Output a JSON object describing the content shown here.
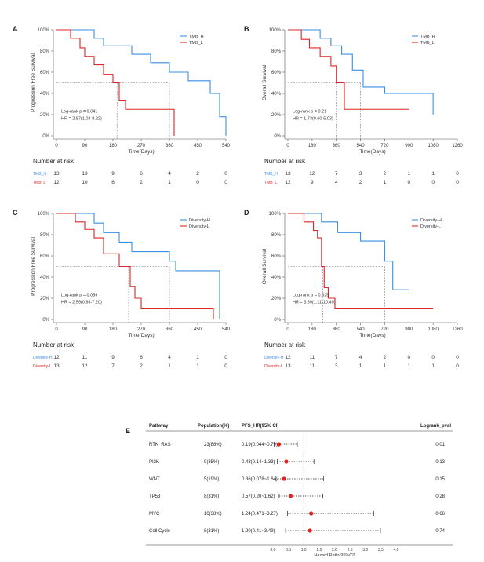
{
  "colors": {
    "high": "#3a8ee6",
    "low": "#e02424",
    "axis": "#555555",
    "ref": "#777777"
  },
  "chart_data": [
    {
      "type": "line",
      "panel": "A",
      "title": "",
      "xlabel": "Time(Days)",
      "ylabel": "Progression Free Survival",
      "xticks": [
        "0",
        "90",
        "180",
        "270",
        "360",
        "450",
        "540"
      ],
      "xlim": [
        0,
        540
      ],
      "yticks": [
        "0%",
        "20%",
        "40%",
        "60%",
        "80%",
        "100%"
      ],
      "ylim": [
        0,
        100
      ],
      "legend": {
        "high": "TMB_H",
        "low": "TMB_L"
      },
      "annotation": [
        "Log-rank p = 0.041",
        "HR = 2.87(1.03-8.22)"
      ],
      "median_lines": [
        193,
        360
      ],
      "series": [
        {
          "name": "TMB_H",
          "x": [
            0,
            60,
            120,
            150,
            210,
            240,
            300,
            360,
            420,
            490,
            520,
            540
          ],
          "y": [
            100,
            100,
            92,
            85,
            85,
            77,
            69,
            60,
            52,
            40,
            18,
            0
          ]
        },
        {
          "name": "TMB_L",
          "x": [
            0,
            45,
            75,
            90,
            120,
            150,
            180,
            200,
            220,
            350,
            375
          ],
          "y": [
            100,
            92,
            83,
            75,
            67,
            58,
            50,
            33,
            25,
            25,
            0
          ]
        }
      ],
      "risk_title": "Number at risk",
      "risk": [
        {
          "name": "TMB_H",
          "values": [
            "13",
            "13",
            "9",
            "6",
            "4",
            "2",
            "0"
          ]
        },
        {
          "name": "TMB_L",
          "values": [
            "12",
            "10",
            "6",
            "2",
            "1",
            "0",
            "0"
          ]
        }
      ]
    },
    {
      "type": "line",
      "panel": "B",
      "title": "",
      "xlabel": "Time(Days)",
      "ylabel": "Overall Survival",
      "xticks": [
        "0",
        "180",
        "360",
        "540",
        "720",
        "900",
        "1080",
        "1260"
      ],
      "xlim": [
        0,
        1260
      ],
      "yticks": [
        "0%",
        "20%",
        "40%",
        "60%",
        "80%",
        "100%"
      ],
      "ylim": [
        0,
        100
      ],
      "legend": {
        "high": "TMB_H",
        "low": "TMB_L"
      },
      "annotation": [
        "Log-rank p = 0.21",
        "HR = 1.73(0.60-5.03)"
      ],
      "median_lines": [
        360,
        540
      ],
      "series": [
        {
          "name": "TMB_H",
          "x": [
            0,
            120,
            240,
            320,
            400,
            480,
            560,
            720,
            1080
          ],
          "y": [
            100,
            100,
            92,
            85,
            77,
            62,
            46,
            40,
            20
          ]
        },
        {
          "name": "TMB_L",
          "x": [
            0,
            100,
            160,
            240,
            320,
            360,
            420,
            900
          ],
          "y": [
            100,
            91,
            83,
            75,
            66,
            50,
            25,
            25
          ]
        }
      ],
      "risk_title": "Number at risk",
      "risk": [
        {
          "name": "TMB_H",
          "values": [
            "13",
            "12",
            "7",
            "3",
            "2",
            "1",
            "1",
            "0"
          ]
        },
        {
          "name": "TMB_L",
          "values": [
            "12",
            "9",
            "4",
            "2",
            "1",
            "0",
            "0",
            "0"
          ]
        }
      ]
    },
    {
      "type": "line",
      "panel": "C",
      "title": "",
      "xlabel": "Time(Days)",
      "ylabel": "Progression Free Survival",
      "xticks": [
        "0",
        "90",
        "180",
        "270",
        "360",
        "450",
        "540"
      ],
      "xlim": [
        0,
        540
      ],
      "yticks": [
        "0%",
        "20%",
        "40%",
        "60%",
        "80%",
        "100%"
      ],
      "ylim": [
        0,
        100
      ],
      "legend": {
        "high": "Diversity-H",
        "low": "Diversity-L"
      },
      "annotation": [
        "Log-rank p = 0.059",
        "HR = 2.59(0.93-7.20)"
      ],
      "median_lines": [
        230,
        360
      ],
      "series": [
        {
          "name": "Diversity-H",
          "x": [
            0,
            60,
            120,
            150,
            200,
            240,
            360,
            380,
            520
          ],
          "y": [
            100,
            100,
            91,
            82,
            73,
            64,
            55,
            46,
            0
          ]
        },
        {
          "name": "Diversity-L",
          "x": [
            0,
            60,
            90,
            120,
            150,
            200,
            235,
            250,
            270,
            360,
            500
          ],
          "y": [
            100,
            92,
            85,
            77,
            62,
            50,
            31,
            20,
            10,
            10,
            0
          ]
        }
      ],
      "risk_title": "Number at risk",
      "risk": [
        {
          "name": "Diversity-H",
          "values": [
            "12",
            "11",
            "9",
            "6",
            "4",
            "1",
            "0"
          ]
        },
        {
          "name": "Diversity-L",
          "values": [
            "13",
            "12",
            "7",
            "2",
            "1",
            "1",
            "0"
          ]
        }
      ]
    },
    {
      "type": "line",
      "panel": "D",
      "title": "",
      "xlabel": "Time(Days)",
      "ylabel": "Overall Survival",
      "xticks": [
        "0",
        "180",
        "360",
        "540",
        "720",
        "900",
        "1080",
        "1260"
      ],
      "xlim": [
        0,
        1260
      ],
      "yticks": [
        "0%",
        "20%",
        "40%",
        "60%",
        "80%",
        "100%"
      ],
      "ylim": [
        0,
        100
      ],
      "legend": {
        "high": "Diversity-H",
        "low": "Diversity-L"
      },
      "annotation": [
        "Log-rank p = 0.025",
        "HR = 3.39(1.11-10.40)"
      ],
      "median_lines": [
        260,
        720
      ],
      "series": [
        {
          "name": "Diversity-H",
          "x": [
            0,
            150,
            250,
            370,
            540,
            720,
            780,
            900
          ],
          "y": [
            100,
            100,
            92,
            82,
            74,
            55,
            28,
            28
          ]
        },
        {
          "name": "Diversity-L",
          "x": [
            0,
            120,
            190,
            220,
            250,
            270,
            300,
            350,
            1080
          ],
          "y": [
            100,
            92,
            84,
            77,
            50,
            30,
            20,
            10,
            10
          ]
        }
      ],
      "risk_title": "Number at risk",
      "risk": [
        {
          "name": "Diversity-H",
          "values": [
            "12",
            "11",
            "7",
            "4",
            "2",
            "0",
            "0",
            "0"
          ]
        },
        {
          "name": "Diversity-L",
          "values": [
            "13",
            "11",
            "3",
            "1",
            "1",
            "1",
            "1",
            "0"
          ]
        }
      ]
    },
    {
      "type": "forest",
      "panel": "E",
      "headers": {
        "pathway": "Pathway",
        "population": "Population(%)",
        "hr": "PFS_HR(95% CI)",
        "pval": "Logrank_pval"
      },
      "xlabel": "Hazard Ratio(95%CI)",
      "xticks": [
        "0.0",
        "0.5",
        "1.0",
        "1.5",
        "2.0",
        "2.5",
        "3.0",
        "3.5",
        "4.0"
      ],
      "xlim": [
        0,
        4
      ],
      "rows": [
        {
          "pathway": "RTK_RAS",
          "population": "23(88%)",
          "hr_text": "0.19(0.044~0.79)",
          "pval": "0.01",
          "hr": 0.19,
          "lo": 0.044,
          "hi": 0.79
        },
        {
          "pathway": "PI3K",
          "population": "9(35%)",
          "hr_text": "0.43(0.14~1.33)",
          "pval": "0.13",
          "hr": 0.43,
          "lo": 0.14,
          "hi": 1.33
        },
        {
          "pathway": "WNT",
          "population": "5(19%)",
          "hr_text": "0.36(0.078~1.64)",
          "pval": "0.15",
          "hr": 0.36,
          "lo": 0.078,
          "hi": 1.64
        },
        {
          "pathway": "TP53",
          "population": "8(31%)",
          "hr_text": "0.57(0.20~1.62)",
          "pval": "0.28",
          "hr": 0.57,
          "lo": 0.2,
          "hi": 1.62
        },
        {
          "pathway": "MYC",
          "population": "10(38%)",
          "hr_text": "1.24(0.471~3.27)",
          "pval": "0.66",
          "hr": 1.24,
          "lo": 0.471,
          "hi": 3.27
        },
        {
          "pathway": "Cell Cycle",
          "population": "8(31%)",
          "hr_text": "1.20(0.41~3.49)",
          "pval": "0.74",
          "hr": 1.2,
          "lo": 0.41,
          "hi": 3.49
        }
      ]
    }
  ]
}
